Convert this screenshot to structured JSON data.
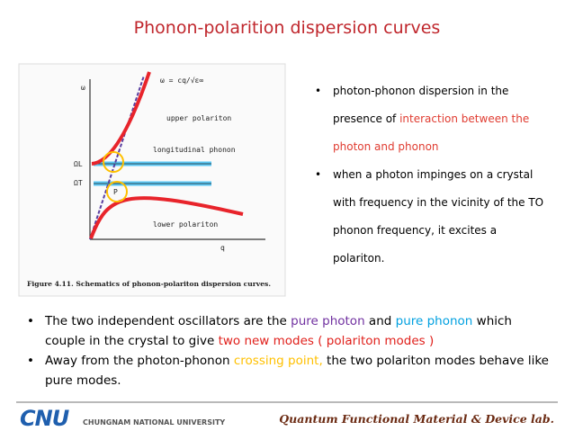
{
  "title": "Phonon-polarition dispersion curves",
  "figure": {
    "omega_axis": "ω",
    "q_axis": "q",
    "formula": "ω = cq/√ε∞",
    "upper": "upper polariton",
    "longitudinal": "longitudinal phonon",
    "omega_l": "ΩL",
    "omega_t": "ΩT",
    "point": "P",
    "lower": "lower polariton",
    "caption": "Figure 4.11. Schematics of phonon-polariton dispersion curves."
  },
  "right_bullets": [
    [
      {
        "text": "photon-phonon dispersion in the presence of ",
        "color": "#000000"
      },
      {
        "text": "interaction between the photon and phonon",
        "color": "#e03c31"
      }
    ],
    [
      {
        "text": "when a photon impinges on a crystal with frequency in the vicinity of the TO phonon frequency, it excites a polariton.",
        "color": "#000000"
      }
    ]
  ],
  "bottom_bullets": [
    [
      {
        "text": "The two independent oscillators are the ",
        "color": "#000000"
      },
      {
        "text": "pure photon",
        "color": "#7030a0"
      },
      {
        "text": " and ",
        "color": "#000000"
      },
      {
        "text": "pure phonon",
        "color": "#00a0e0"
      },
      {
        "text": " which couple in the crystal to give ",
        "color": "#000000"
      },
      {
        "text": "two new modes ( polariton modes )",
        "color": "#e0201b"
      }
    ],
    [
      {
        "text": "Away from the photon-phonon ",
        "color": "#000000"
      },
      {
        "text": "crossing point,",
        "color": "#ffc000"
      },
      {
        "text": " the two polariton modes behave like pure modes.",
        "color": "#000000"
      }
    ]
  ],
  "footer": {
    "logo": "CNU",
    "university": "CHUNGNAM NATIONAL UNIVERSITY",
    "lab": "Quantum Functional Material & Device lab."
  }
}
